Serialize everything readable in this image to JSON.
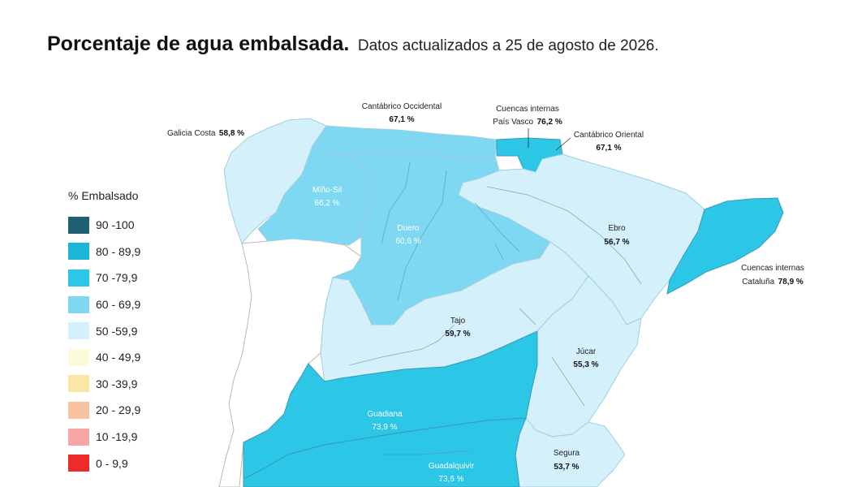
{
  "title": "Porcentaje de agua embalsada.",
  "subtitle": "Datos actualizados a 25 de agosto de 2026.",
  "legend": {
    "title": "% Embalsado",
    "items": [
      {
        "label": "90 -100",
        "color": "#1f5f73"
      },
      {
        "label": "80 - 89,9",
        "color": "#1ab6d9"
      },
      {
        "label": "70 -79,9",
        "color": "#2cc6e6"
      },
      {
        "label": "60 - 69,9",
        "color": "#7fd8f1"
      },
      {
        "label": "50 -59,9",
        "color": "#d4f0fa"
      },
      {
        "label": "40 - 49,9",
        "color": "#fbfbd9"
      },
      {
        "label": "30 -39,9",
        "color": "#fbe7a5"
      },
      {
        "label": "20 - 29,9",
        "color": "#f8c4a0"
      },
      {
        "label": "10 -19,9",
        "color": "#f5a7a7"
      },
      {
        "label": "0 - 9,9",
        "color": "#ee2a2a"
      }
    ]
  },
  "basins": {
    "galicia_costa": {
      "name": "Galicia Costa",
      "value": "58,8 %"
    },
    "cantabrico_occ": {
      "name": "Cantábrico Occidental",
      "value": "67,1 %"
    },
    "pais_vasco": {
      "name1": "Cuencas internas",
      "name2": "País Vasco",
      "value": "76,2 %"
    },
    "cantabrico_ori": {
      "name": "Cantábrico Oriental",
      "value": "67,1 %"
    },
    "mino_sil": {
      "name": "Miño-Sil",
      "value": "66,2 %"
    },
    "duero": {
      "name": "Duero",
      "value": "60,6 %"
    },
    "ebro": {
      "name": "Ebro",
      "value": "56,7 %"
    },
    "cataluna": {
      "name1": "Cuencas internas",
      "name2": "Cataluña",
      "value": "78,9 %"
    },
    "tajo": {
      "name": "Tajo",
      "value": "59,7 %"
    },
    "jucar": {
      "name": "Júcar",
      "value": "55,3 %"
    },
    "guadiana": {
      "name": "Guadiana",
      "value": "73,9 %"
    },
    "segura": {
      "name": "Segura",
      "value": "53,7 %"
    },
    "guadalquivir": {
      "name": "Guadalquivir",
      "value": "73,6 %"
    }
  }
}
